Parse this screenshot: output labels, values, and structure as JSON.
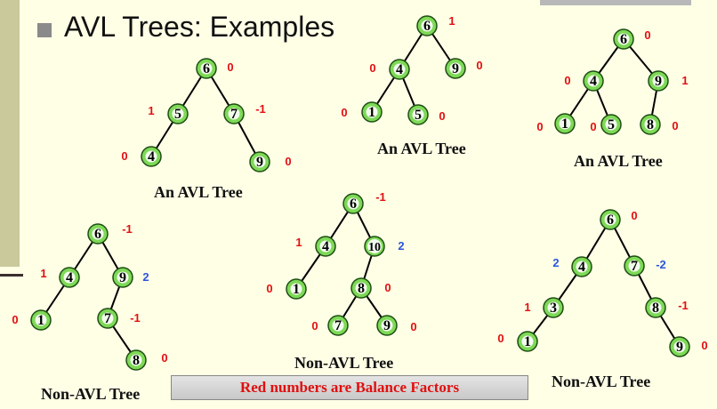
{
  "title": "AVL Trees:  Examples",
  "legend": "Red numbers are Balance Factors",
  "colors": {
    "node_fill": "#7ed957",
    "bf_red": "#e01010",
    "bf_blue": "#2a55e0",
    "edge": "#000000"
  },
  "trees": [
    {
      "caption": "An AVL Tree",
      "nodes": [
        {
          "id": "t1n6",
          "key": "6",
          "bf": "0"
        },
        {
          "id": "t1n5",
          "key": "5",
          "bf": "1"
        },
        {
          "id": "t1n7",
          "key": "7",
          "bf": "-1"
        },
        {
          "id": "t1n4",
          "key": "4",
          "bf": "0"
        },
        {
          "id": "t1n9",
          "key": "9",
          "bf": "0"
        }
      ]
    },
    {
      "caption": "An AVL Tree",
      "nodes": [
        {
          "id": "t2n6",
          "key": "6",
          "bf": "1"
        },
        {
          "id": "t2n4",
          "key": "4",
          "bf": "0"
        },
        {
          "id": "t2n9",
          "key": "9",
          "bf": "0"
        },
        {
          "id": "t2n1",
          "key": "1",
          "bf": "0"
        },
        {
          "id": "t2n5",
          "key": "5",
          "bf": "0"
        }
      ]
    },
    {
      "caption": "An AVL Tree",
      "nodes": [
        {
          "id": "t3n6",
          "key": "6",
          "bf": "0"
        },
        {
          "id": "t3n4",
          "key": "4",
          "bf": "0"
        },
        {
          "id": "t3n9",
          "key": "9",
          "bf": "1"
        },
        {
          "id": "t3n1",
          "key": "1",
          "bf": "0"
        },
        {
          "id": "t3n5",
          "key": "5",
          "bf": "0"
        },
        {
          "id": "t3n8",
          "key": "8",
          "bf": "0"
        }
      ]
    },
    {
      "caption": "Non-AVL Tree",
      "nodes": [
        {
          "id": "t4n6",
          "key": "6",
          "bf": "-1"
        },
        {
          "id": "t4n4",
          "key": "4",
          "bf": "1"
        },
        {
          "id": "t4n9",
          "key": "9",
          "bf": "2",
          "unbalanced": true
        },
        {
          "id": "t4n1",
          "key": "1",
          "bf": "0"
        },
        {
          "id": "t4n7",
          "key": "7",
          "bf": "-1"
        },
        {
          "id": "t4n8",
          "key": "8",
          "bf": "0"
        }
      ]
    },
    {
      "caption": "Non-AVL Tree",
      "nodes": [
        {
          "id": "t5n6",
          "key": "6",
          "bf": "-1"
        },
        {
          "id": "t5n4",
          "key": "4",
          "bf": "1"
        },
        {
          "id": "t5n10",
          "key": "10",
          "bf": "2",
          "unbalanced": true
        },
        {
          "id": "t5n1",
          "key": "1",
          "bf": "0"
        },
        {
          "id": "t5n8",
          "key": "8",
          "bf": "0"
        },
        {
          "id": "t5n7",
          "key": "7",
          "bf": "0"
        },
        {
          "id": "t5n9",
          "key": "9",
          "bf": "0"
        }
      ]
    },
    {
      "caption": "Non-AVL Tree",
      "nodes": [
        {
          "id": "t6n6",
          "key": "6",
          "bf": "0"
        },
        {
          "id": "t6n4",
          "key": "4",
          "bf": "2",
          "unbalanced": true
        },
        {
          "id": "t6n7",
          "key": "7",
          "bf": "-2",
          "unbalanced": true
        },
        {
          "id": "t6n3",
          "key": "3",
          "bf": "1"
        },
        {
          "id": "t6n8",
          "key": "8",
          "bf": "-1"
        },
        {
          "id": "t6n1",
          "key": "1",
          "bf": "0"
        },
        {
          "id": "t6n9",
          "key": "9",
          "bf": "0"
        }
      ]
    }
  ]
}
